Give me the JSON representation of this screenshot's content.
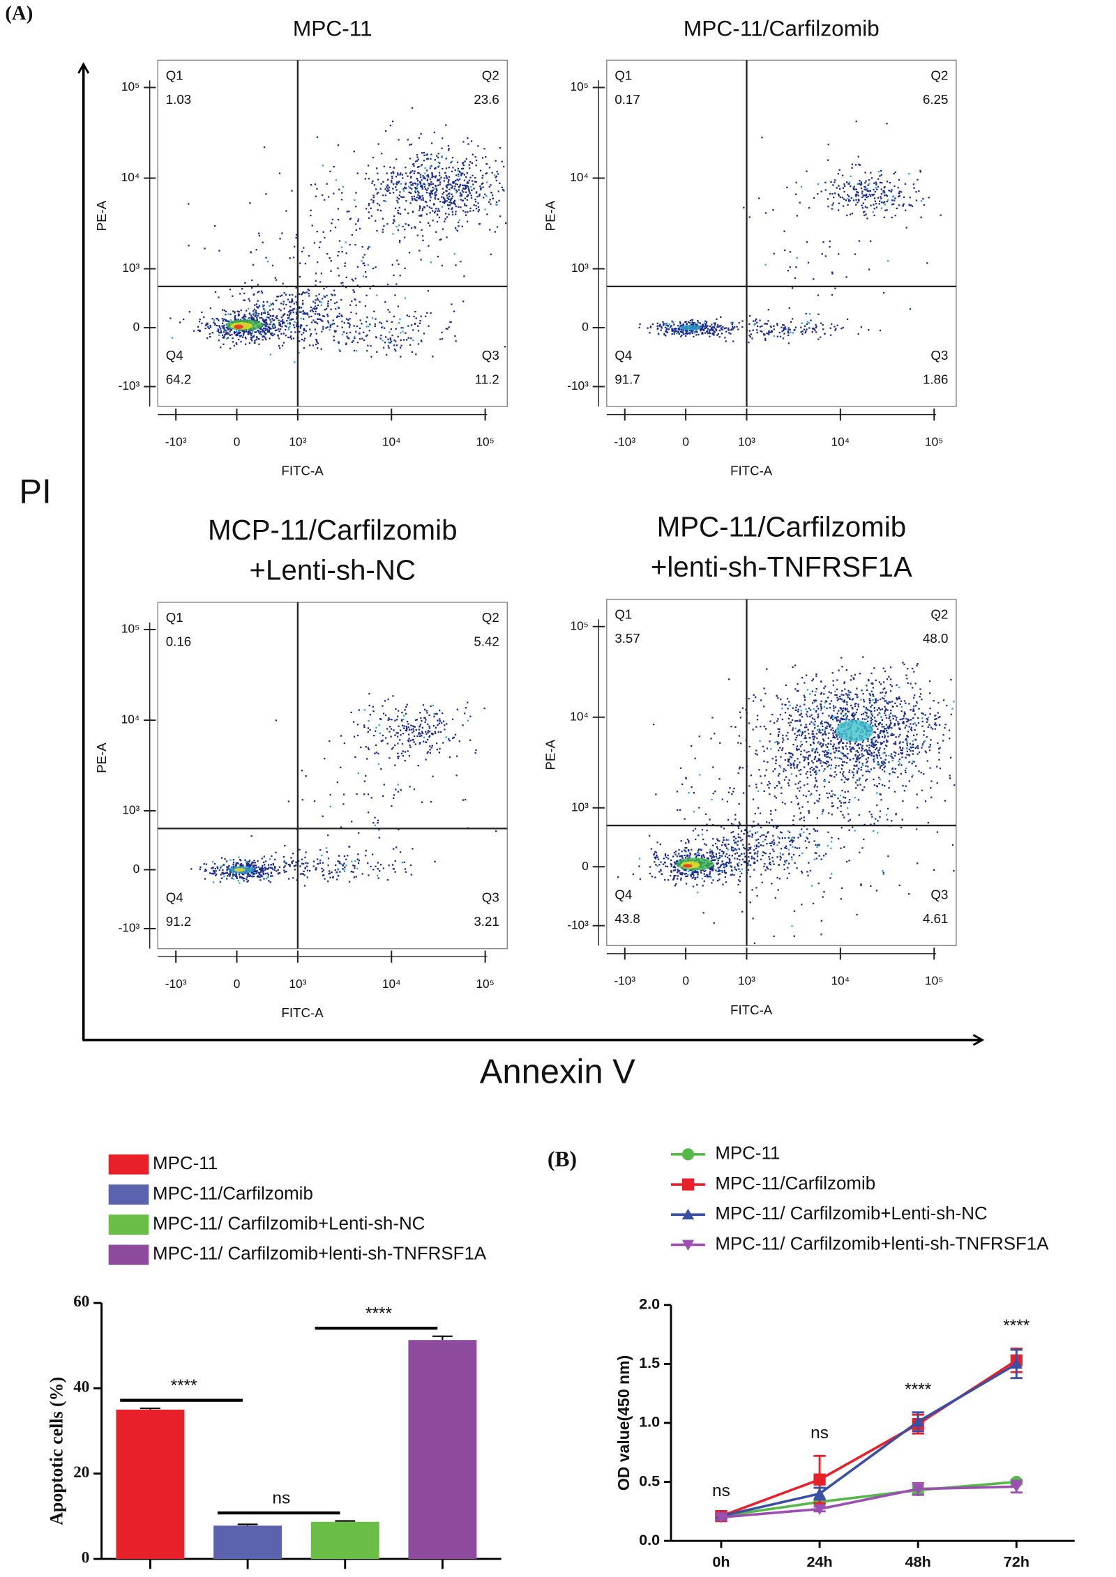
{
  "figure": {
    "panel_a": "(A)",
    "panel_b": "(B)",
    "y_label": "PI",
    "x_label": "Annexin V"
  },
  "chart_data": [
    {
      "type": "flow",
      "title": [
        "MPC-11"
      ],
      "xlabel": "FITC-A",
      "ylabel": "PE-A",
      "xlim": [
        -1560,
        172000
      ],
      "ylim": [
        -1660,
        200000
      ],
      "xticks": [
        {
          "value": -1000,
          "label": "-10³"
        },
        0,
        {
          "value": 1000,
          "label": "10³"
        },
        {
          "value": 10000,
          "label": "10⁴"
        },
        {
          "value": 100000,
          "label": "10⁵"
        }
      ],
      "yticks": [
        {
          "value": -1000,
          "label": "-10³"
        },
        0,
        {
          "value": 1000,
          "label": "10³"
        },
        {
          "value": 10000,
          "label": "10⁴"
        },
        {
          "value": 100000,
          "label": "10⁵"
        }
      ],
      "gate": [
        1000,
        700
      ],
      "quadrants": [
        {
          "name": "Q1",
          "value": "1.03"
        },
        {
          "name": "Q2",
          "value": "23.6"
        },
        {
          "name": "Q3",
          "value": "11.2"
        },
        {
          "name": "Q4",
          "value": "64.2"
        }
      ]
    },
    {
      "type": "flow",
      "title": [
        "MPC-11/Carfilzomib"
      ],
      "xlabel": "FITC-A",
      "ylabel": "PE-A",
      "xlim": [
        -1560,
        172000
      ],
      "ylim": [
        -1660,
        200000
      ],
      "xticks": [
        {
          "value": -1000,
          "label": "-10³"
        },
        0,
        {
          "value": 1000,
          "label": "10³"
        },
        {
          "value": 10000,
          "label": "10⁴"
        },
        {
          "value": 100000,
          "label": "10⁵"
        }
      ],
      "yticks": [
        {
          "value": -1000,
          "label": "-10³"
        },
        0,
        {
          "value": 1000,
          "label": "10³"
        },
        {
          "value": 10000,
          "label": "10⁴"
        },
        {
          "value": 100000,
          "label": "10⁵"
        }
      ],
      "gate": [
        1000,
        700
      ],
      "quadrants": [
        {
          "name": "Q1",
          "value": "0.17"
        },
        {
          "name": "Q2",
          "value": "6.25"
        },
        {
          "name": "Q3",
          "value": "1.86"
        },
        {
          "name": "Q4",
          "value": "91.7"
        }
      ]
    },
    {
      "type": "flow",
      "title": [
        "MCP-11/Carfilzomib",
        "+Lenti-sh-NC"
      ],
      "xlabel": "FITC-A",
      "ylabel": "PE-A",
      "xlim": [
        -1560,
        172000
      ],
      "ylim": [
        -1660,
        200000
      ],
      "xticks": [
        {
          "value": -1000,
          "label": "-10³"
        },
        0,
        {
          "value": 1000,
          "label": "10³"
        },
        {
          "value": 10000,
          "label": "10⁴"
        },
        {
          "value": 100000,
          "label": "10⁵"
        }
      ],
      "yticks": [
        {
          "value": -1000,
          "label": "-10³"
        },
        0,
        {
          "value": 1000,
          "label": "10³"
        },
        {
          "value": 10000,
          "label": "10⁴"
        },
        {
          "value": 100000,
          "label": "10⁵"
        }
      ],
      "gate": [
        1000,
        700
      ],
      "quadrants": [
        {
          "name": "Q1",
          "value": "0.16"
        },
        {
          "name": "Q2",
          "value": "5.42"
        },
        {
          "name": "Q3",
          "value": "3.21"
        },
        {
          "name": "Q4",
          "value": "91.2"
        }
      ]
    },
    {
      "type": "flow",
      "title": [
        "MPC-11/Carfilzomib",
        "+lenti-sh-TNFRSF1A"
      ],
      "xlabel": "FITC-A",
      "ylabel": "PE-A",
      "xlim": [
        -1560,
        172000
      ],
      "ylim": [
        -1660,
        200000
      ],
      "xticks": [
        {
          "value": -1000,
          "label": "-10³"
        },
        0,
        {
          "value": 1000,
          "label": "10³"
        },
        {
          "value": 10000,
          "label": "10⁴"
        },
        {
          "value": 100000,
          "label": "10⁵"
        }
      ],
      "yticks": [
        {
          "value": -1000,
          "label": "-10³"
        },
        0,
        {
          "value": 1000,
          "label": "10³"
        },
        {
          "value": 10000,
          "label": "10⁴"
        },
        {
          "value": 100000,
          "label": "10⁵"
        }
      ],
      "gate": [
        1000,
        700
      ],
      "quadrants": [
        {
          "name": "Q1",
          "value": "3.57"
        },
        {
          "name": "Q2",
          "value": "48.0"
        },
        {
          "name": "Q3",
          "value": "4.61"
        },
        {
          "name": "Q4",
          "value": "43.8"
        }
      ]
    },
    {
      "type": "bar",
      "ylabel": "Apoptotic cells (%)",
      "categories": [
        "MPC-11",
        "MPC-11/Carfilzomib",
        "MPC-11/ Carfilzomib+Lenti-sh-NC",
        "MPC-11/ Carfilzomib+lenti-sh-TNFRSF1A"
      ],
      "values": [
        35,
        7.8,
        8.7,
        51.3
      ],
      "errors": [
        0.3,
        0.3,
        0.2,
        0.9
      ],
      "colors": [
        "#e8202a",
        "#5b62ae",
        "#6abd45",
        "#8e4a9c"
      ],
      "ylim": [
        0,
        60
      ],
      "yticks": [
        0,
        20,
        40,
        60
      ],
      "annotations": [
        "****",
        "ns",
        "****"
      ]
    },
    {
      "type": "line",
      "ylabel": "OD value(450 nm)",
      "categories": [
        "0h",
        "24h",
        "48h",
        "72h"
      ],
      "ylim": [
        0,
        2
      ],
      "yticks": [
        {
          "value": 0,
          "label": "0.0"
        },
        0.5,
        {
          "value": 1,
          "label": "1.0"
        },
        1.5,
        {
          "value": 2,
          "label": "2.0"
        }
      ],
      "series": [
        {
          "name": "MPC-11",
          "color": "#55b848",
          "marker": "circle",
          "values": [
            0.21,
            0.33,
            0.43,
            0.5
          ],
          "errors": [
            0.02,
            0.02,
            0.03,
            0.02
          ]
        },
        {
          "name": "MPC-11/Carfilzomib",
          "color": "#e8202a",
          "marker": "square",
          "values": [
            0.21,
            0.52,
            0.99,
            1.53
          ],
          "errors": [
            0.02,
            0.2,
            0.08,
            0.1
          ]
        },
        {
          "name": "MPC-11/ Carfilzomib+Lenti-sh-NC",
          "color": "#3a4fa3",
          "marker": "triangle",
          "values": [
            0.21,
            0.4,
            1.01,
            1.5
          ],
          "errors": [
            0.02,
            0.05,
            0.08,
            0.12
          ]
        },
        {
          "name": "MPC-11/ Carfilzomib+lenti-sh-TNFRSF1A",
          "color": "#9b4fb0",
          "marker": "triangle-down",
          "values": [
            0.2,
            0.27,
            0.44,
            0.46
          ],
          "errors": [
            0.02,
            0.02,
            0.05,
            0.05
          ]
        }
      ],
      "annotations": [
        "ns",
        "ns",
        "****",
        "****"
      ]
    }
  ]
}
